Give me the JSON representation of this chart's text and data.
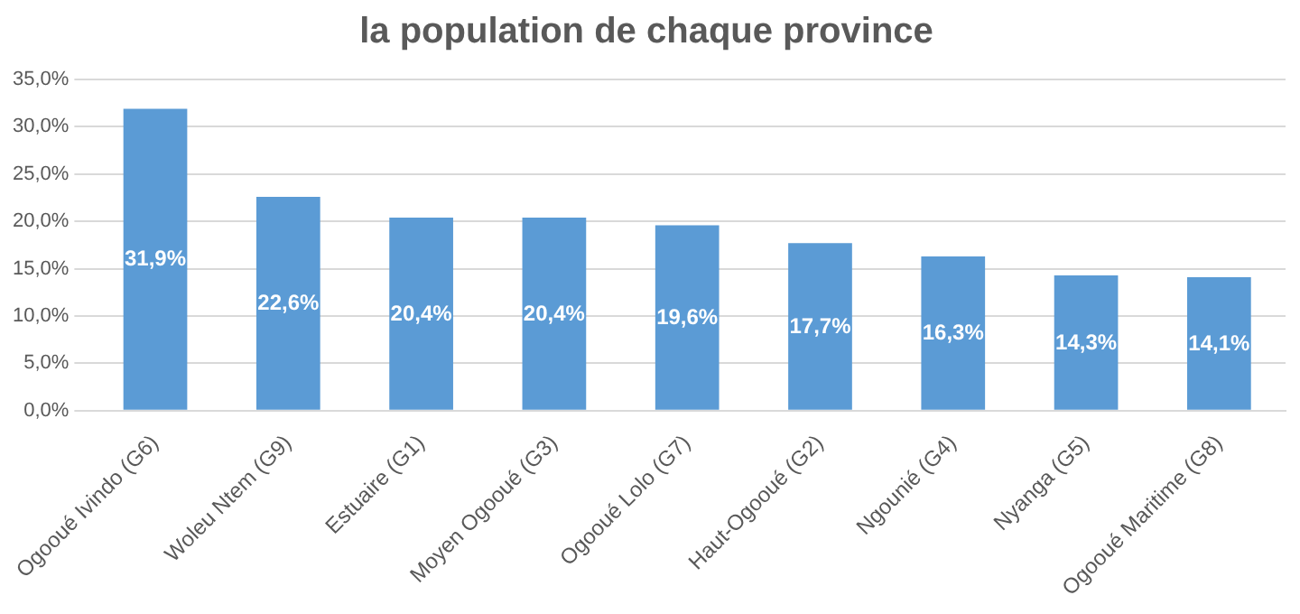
{
  "chart_data": {
    "type": "bar",
    "title": "la population de chaque province",
    "categories": [
      "Ogooué Ivindo (G6)",
      "Woleu Ntem (G9)",
      "Estuaire (G1)",
      "Moyen Ogooué (G3)",
      "Ogooué Lolo (G7)",
      "Haut-Ogooué (G2)",
      "Ngounié (G4)",
      "Nyanga (G5)",
      "Ogooué Maritime (G8)"
    ],
    "values": [
      31.9,
      22.6,
      20.4,
      20.4,
      19.6,
      17.7,
      16.3,
      14.3,
      14.1
    ],
    "value_labels": [
      "31,9%",
      "22,6%",
      "20,4%",
      "20,4%",
      "19,6%",
      "17,7%",
      "16,3%",
      "14,3%",
      "14,1%"
    ],
    "color": "#5b9bd5",
    "ylim": [
      0,
      35
    ],
    "yticks": [
      {
        "value": 0,
        "label": "0,0%"
      },
      {
        "value": 5,
        "label": "5,0%"
      },
      {
        "value": 10,
        "label": "10,0%"
      },
      {
        "value": 15,
        "label": "15,0%"
      },
      {
        "value": 20,
        "label": "20,0%"
      },
      {
        "value": 25,
        "label": "25,0%"
      },
      {
        "value": 30,
        "label": "30,0%"
      },
      {
        "value": 35,
        "label": "35,0%"
      }
    ],
    "grid": "y",
    "legend": false
  }
}
